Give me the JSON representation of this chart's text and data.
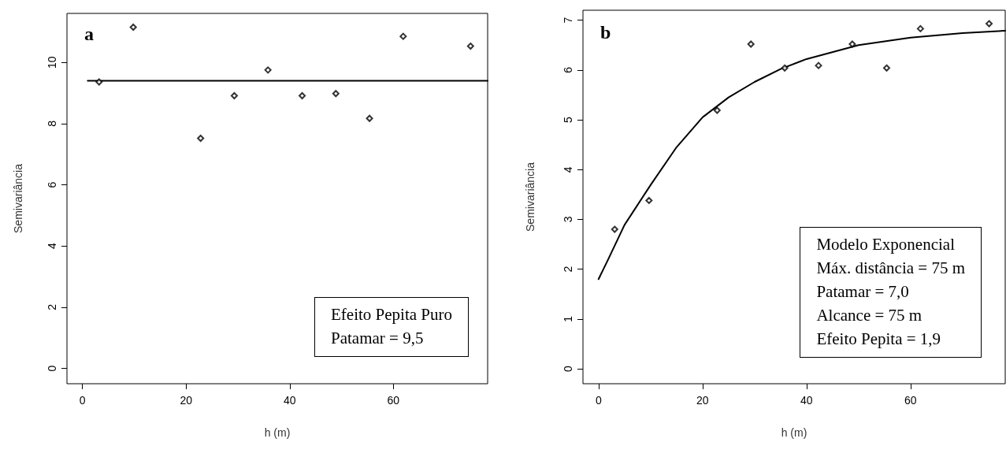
{
  "chart_data": [
    {
      "type": "scatter",
      "xlabel": "h (m)",
      "ylabel": "Semivariância",
      "xlim": [
        -3,
        78.2
      ],
      "xticks": [
        0,
        20,
        40,
        60
      ],
      "ylim": [
        -0.5,
        11.6
      ],
      "yticks": [
        0,
        2,
        4,
        6,
        8,
        10
      ],
      "grid": false,
      "series": [
        {
          "type": "scatter",
          "marker": "diamond",
          "color": "#000000",
          "x": [
            3.2,
            9.8,
            22.8,
            29.3,
            35.8,
            42.4,
            48.9,
            55.4,
            61.9,
            74.9
          ],
          "values": [
            9.36,
            11.15,
            7.52,
            8.91,
            9.75,
            8.91,
            8.98,
            8.17,
            10.85,
            10.53
          ]
        },
        {
          "type": "line",
          "marker": "none",
          "color": "#000000",
          "x": [
            1,
            78.2
          ],
          "values": [
            9.4,
            9.4
          ]
        }
      ],
      "annotations": [
        "a",
        "Efeito Pepita Puro",
        "Patamar = 9,5"
      ]
    },
    {
      "type": "scatter",
      "xlabel": "h (m)",
      "ylabel": "Semivariância",
      "xlim": [
        -3,
        78.2
      ],
      "xticks": [
        0,
        20,
        40,
        60
      ],
      "ylim": [
        -0.3,
        7.2
      ],
      "yticks": [
        0,
        1,
        2,
        3,
        4,
        5,
        6,
        7
      ],
      "grid": false,
      "series": [
        {
          "type": "scatter",
          "marker": "diamond",
          "color": "#000000",
          "x": [
            3.1,
            9.7,
            22.8,
            29.3,
            35.8,
            42.3,
            48.8,
            55.4,
            61.9,
            75.1
          ],
          "values": [
            2.8,
            3.38,
            5.19,
            6.52,
            6.04,
            6.09,
            6.52,
            6.04,
            6.83,
            6.93
          ]
        },
        {
          "type": "line",
          "marker": "none",
          "color": "#000000",
          "x": [
            0,
            2,
            5,
            10,
            15,
            20,
            25,
            30,
            35,
            40,
            50,
            60,
            70,
            78.2
          ],
          "values": [
            1.8,
            2.23,
            2.89,
            3.69,
            4.45,
            5.05,
            5.45,
            5.76,
            6.02,
            6.22,
            6.5,
            6.65,
            6.74,
            6.79
          ]
        }
      ],
      "annotations": [
        "b",
        "Modelo Exponencial",
        "Máx. distância = 75 m",
        "Patamar = 7,0",
        "Alcance = 75 m",
        "Efeito Pepita = 1,9"
      ]
    }
  ]
}
